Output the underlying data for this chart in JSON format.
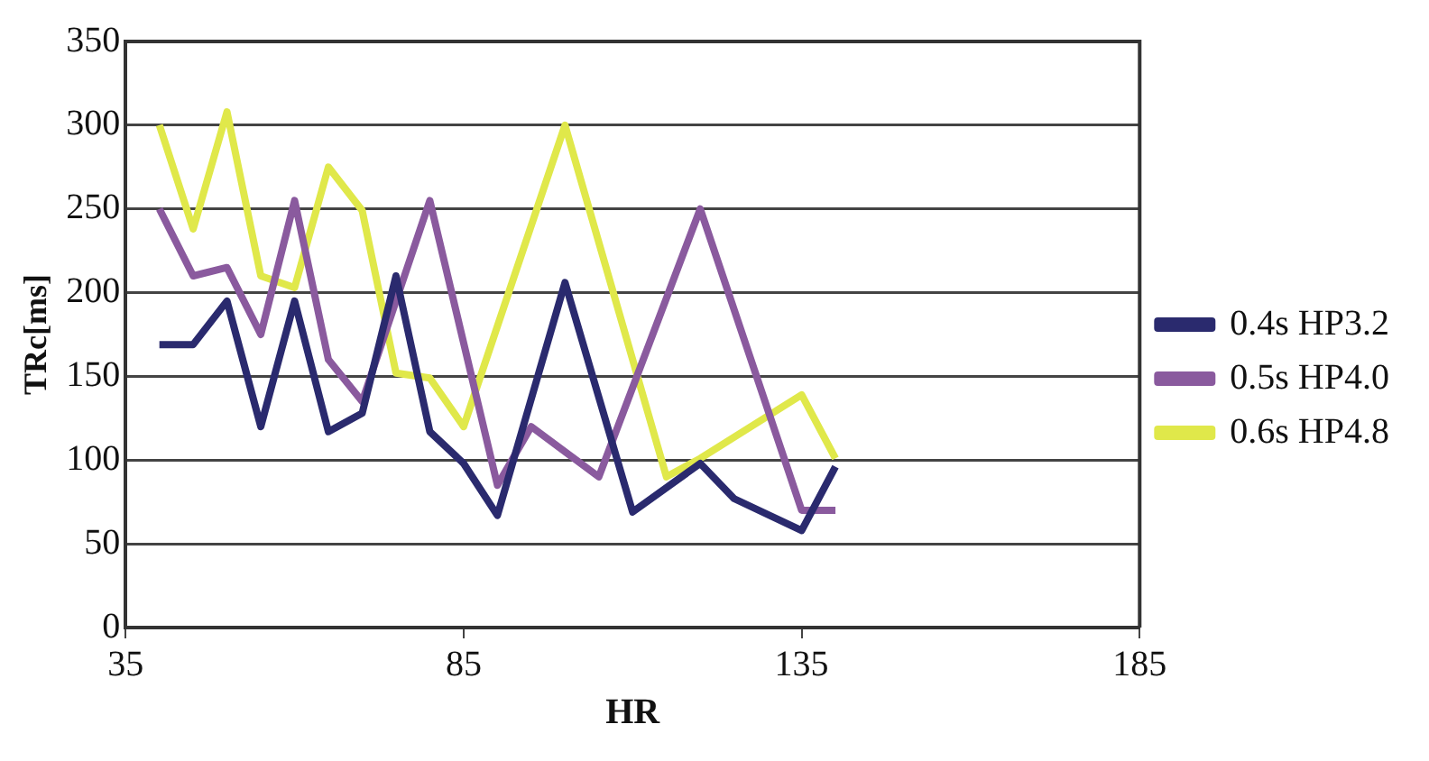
{
  "chart_data": {
    "type": "line",
    "xlabel": "HR",
    "ylabel": "TRc[ms]",
    "xlim": [
      35,
      185
    ],
    "xticks": [
      35,
      85,
      135,
      185
    ],
    "ylim": [
      0,
      350
    ],
    "yticks": [
      0,
      50,
      100,
      150,
      200,
      250,
      300,
      350
    ],
    "grid": "y",
    "legend": "right",
    "marker": "none",
    "line_style": "solid",
    "series": [
      {
        "name": "0.4s HP3.2",
        "color": "#2a2a6e",
        "x": [
          40,
          45,
          50,
          55,
          60,
          65,
          70,
          75,
          80,
          85,
          90,
          100,
          110,
          120,
          125,
          135,
          140
        ],
        "values": [
          169,
          169,
          195,
          120,
          195,
          117,
          128,
          210,
          117,
          98,
          67,
          206,
          69,
          98,
          77,
          58,
          96
        ]
      },
      {
        "name": "0.5s HP4.0",
        "color": "#8a5a9e",
        "x": [
          40,
          45,
          50,
          55,
          60,
          65,
          70,
          80,
          90,
          95,
          105,
          120,
          135,
          140
        ],
        "values": [
          250,
          210,
          215,
          175,
          255,
          160,
          135,
          255,
          85,
          120,
          90,
          250,
          70,
          70
        ]
      },
      {
        "name": "0.6s HP4.8",
        "color": "#e0e84a",
        "x": [
          40,
          45,
          50,
          55,
          60,
          65,
          70,
          75,
          80,
          85,
          100,
          115,
          120,
          135,
          140
        ],
        "values": [
          300,
          238,
          308,
          210,
          203,
          275,
          249,
          152,
          149,
          120,
          300,
          90,
          101,
          139,
          101
        ]
      }
    ]
  }
}
